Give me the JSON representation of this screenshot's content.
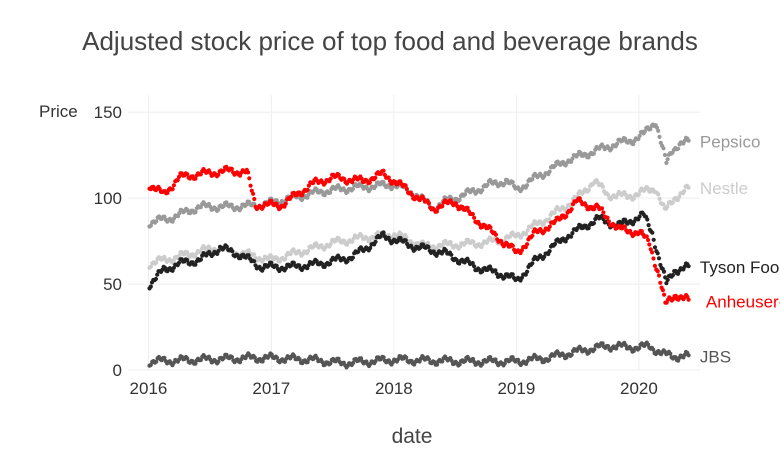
{
  "chart_data": {
    "type": "scatter",
    "title": "Adjusted stock price of top food and beverage brands",
    "xlabel": "date",
    "ylabel": "Price",
    "xlim": [
      "2015-11-01",
      "2020-07-01"
    ],
    "ylim": [
      0,
      160
    ],
    "grid": true,
    "legend": "direct labels at right end of each series",
    "x_ticks": [
      {
        "date": "2016-01-01",
        "label": "2016"
      },
      {
        "date": "2017-01-01",
        "label": "2017"
      },
      {
        "date": "2018-01-01",
        "label": "2018"
      },
      {
        "date": "2019-01-01",
        "label": "2019"
      },
      {
        "date": "2020-01-01",
        "label": "2020"
      }
    ],
    "y_ticks": [
      {
        "value": 0,
        "label": "0"
      },
      {
        "value": 50,
        "label": "50"
      },
      {
        "value": 100,
        "label": "100"
      },
      {
        "value": 150,
        "label": "150"
      }
    ],
    "series": [
      {
        "name": "Pepsico",
        "color": "#999999",
        "points": [
          [
            "2016-01-04",
            86
          ],
          [
            "2016-03-01",
            88
          ],
          [
            "2016-06-01",
            95
          ],
          [
            "2016-09-01",
            95
          ],
          [
            "2016-12-01",
            96
          ],
          [
            "2017-03-01",
            100
          ],
          [
            "2017-06-01",
            104
          ],
          [
            "2017-09-01",
            106
          ],
          [
            "2018-01-02",
            108
          ],
          [
            "2018-03-01",
            103
          ],
          [
            "2018-05-01",
            94
          ],
          [
            "2018-06-01",
            98
          ],
          [
            "2018-08-01",
            102
          ],
          [
            "2018-10-15",
            108
          ],
          [
            "2018-12-01",
            110
          ],
          [
            "2019-01-02",
            105
          ],
          [
            "2019-03-01",
            112
          ],
          [
            "2019-06-01",
            122
          ],
          [
            "2019-09-01",
            128
          ],
          [
            "2019-11-01",
            132
          ],
          [
            "2019-12-15",
            134
          ],
          [
            "2020-01-15",
            137
          ],
          [
            "2020-02-20",
            145
          ],
          [
            "2020-03-10",
            130
          ],
          [
            "2020-03-23",
            120
          ],
          [
            "2020-04-10",
            128
          ],
          [
            "2020-05-01",
            132
          ],
          [
            "2020-06-01",
            133
          ]
        ]
      },
      {
        "name": "Nestle",
        "color": "#cccccc",
        "points": [
          [
            "2016-01-04",
            62
          ],
          [
            "2016-04-01",
            66
          ],
          [
            "2016-07-15",
            71
          ],
          [
            "2016-10-01",
            68
          ],
          [
            "2017-01-02",
            64
          ],
          [
            "2017-04-01",
            69
          ],
          [
            "2017-07-01",
            74
          ],
          [
            "2017-10-01",
            77
          ],
          [
            "2018-01-02",
            79
          ],
          [
            "2018-04-01",
            72
          ],
          [
            "2018-07-01",
            73
          ],
          [
            "2018-10-01",
            74
          ],
          [
            "2019-01-02",
            78
          ],
          [
            "2019-04-01",
            88
          ],
          [
            "2019-07-01",
            100
          ],
          [
            "2019-08-20",
            110
          ],
          [
            "2019-10-01",
            102
          ],
          [
            "2019-12-01",
            101
          ],
          [
            "2020-01-20",
            104
          ],
          [
            "2020-02-20",
            106
          ],
          [
            "2020-03-18",
            92
          ],
          [
            "2020-04-15",
            100
          ],
          [
            "2020-05-15",
            104
          ],
          [
            "2020-06-01",
            106
          ]
        ]
      },
      {
        "name": "Tyson Foods",
        "color": "#222222",
        "points": [
          [
            "2016-01-04",
            50
          ],
          [
            "2016-02-15",
            58
          ],
          [
            "2016-04-01",
            62
          ],
          [
            "2016-06-01",
            64
          ],
          [
            "2016-08-01",
            71
          ],
          [
            "2016-10-01",
            67
          ],
          [
            "2016-12-01",
            60
          ],
          [
            "2017-03-01",
            60
          ],
          [
            "2017-06-01",
            62
          ],
          [
            "2017-09-01",
            66
          ],
          [
            "2017-12-01",
            78
          ],
          [
            "2018-03-01",
            72
          ],
          [
            "2018-06-01",
            68
          ],
          [
            "2018-09-01",
            60
          ],
          [
            "2018-12-01",
            55
          ],
          [
            "2019-01-02",
            52
          ],
          [
            "2019-03-01",
            64
          ],
          [
            "2019-06-01",
            78
          ],
          [
            "2019-09-01",
            88
          ],
          [
            "2019-11-01",
            84
          ],
          [
            "2020-01-15",
            90
          ],
          [
            "2020-02-10",
            80
          ],
          [
            "2020-03-05",
            62
          ],
          [
            "2020-03-23",
            50
          ],
          [
            "2020-04-15",
            58
          ],
          [
            "2020-06-01",
            60
          ]
        ]
      },
      {
        "name": "Anheuser-Busch Inbev",
        "color": "#ff0000",
        "points": [
          [
            "2016-01-04",
            108
          ],
          [
            "2016-02-15",
            102
          ],
          [
            "2016-04-01",
            112
          ],
          [
            "2016-06-01",
            114
          ],
          [
            "2016-09-01",
            116
          ],
          [
            "2016-10-20",
            115
          ],
          [
            "2016-11-15",
            96
          ],
          [
            "2017-02-01",
            96
          ],
          [
            "2017-05-01",
            108
          ],
          [
            "2017-07-01",
            112
          ],
          [
            "2017-10-01",
            110
          ],
          [
            "2017-12-01",
            114
          ],
          [
            "2018-02-01",
            106
          ],
          [
            "2018-03-15",
            100
          ],
          [
            "2018-05-01",
            94
          ],
          [
            "2018-07-01",
            98
          ],
          [
            "2018-09-01",
            88
          ],
          [
            "2018-11-01",
            78
          ],
          [
            "2019-01-02",
            68
          ],
          [
            "2019-03-01",
            80
          ],
          [
            "2019-05-01",
            86
          ],
          [
            "2019-07-01",
            98
          ],
          [
            "2019-09-01",
            94
          ],
          [
            "2019-11-01",
            82
          ],
          [
            "2020-01-02",
            80
          ],
          [
            "2020-02-01",
            74
          ],
          [
            "2020-03-01",
            55
          ],
          [
            "2020-03-20",
            38
          ],
          [
            "2020-04-20",
            44
          ],
          [
            "2020-06-01",
            40
          ]
        ]
      },
      {
        "name": "JBS",
        "color": "#555555",
        "points": [
          [
            "2016-01-04",
            5
          ],
          [
            "2016-06-01",
            6
          ],
          [
            "2016-11-01",
            7
          ],
          [
            "2017-01-02",
            7
          ],
          [
            "2017-05-01",
            6
          ],
          [
            "2017-08-01",
            4
          ],
          [
            "2018-01-02",
            6
          ],
          [
            "2018-08-01",
            5
          ],
          [
            "2019-01-02",
            5
          ],
          [
            "2019-04-01",
            7
          ],
          [
            "2019-08-01",
            12
          ],
          [
            "2019-10-01",
            14
          ],
          [
            "2020-01-02",
            13
          ],
          [
            "2020-02-01",
            14
          ],
          [
            "2020-03-15",
            9
          ],
          [
            "2020-04-15",
            8
          ],
          [
            "2020-06-01",
            8
          ]
        ]
      }
    ]
  }
}
